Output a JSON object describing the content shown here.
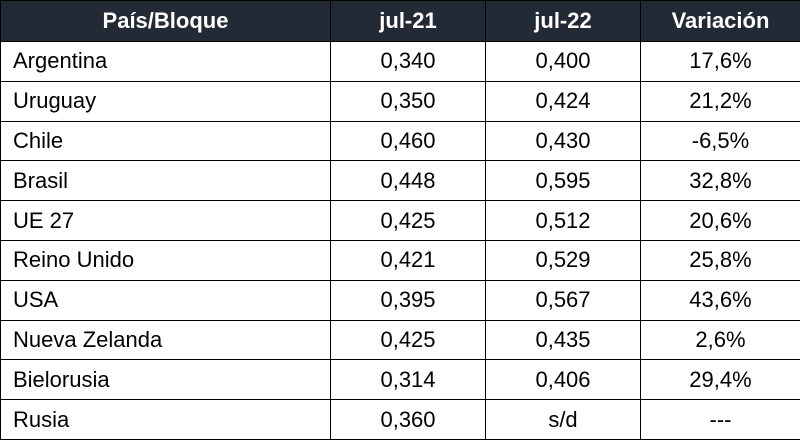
{
  "table": {
    "header": [
      "País/Bloque",
      "jul-21",
      "jul-22",
      "Variación"
    ],
    "rows": [
      [
        "Argentina",
        "0,340",
        "0,400",
        "17,6%"
      ],
      [
        "Uruguay",
        "0,350",
        "0,424",
        "21,2%"
      ],
      [
        "Chile",
        "0,460",
        "0,430",
        "-6,5%"
      ],
      [
        "Brasil",
        "0,448",
        "0,595",
        "32,8%"
      ],
      [
        "UE 27",
        "0,425",
        "0,512",
        "20,6%"
      ],
      [
        "Reino Unido",
        "0,421",
        "0,529",
        "25,8%"
      ],
      [
        "USA",
        "0,395",
        "0,567",
        "43,6%"
      ],
      [
        "Nueva Zelanda",
        "0,425",
        "0,435",
        "2,6%"
      ],
      [
        "Bielorusia",
        "0,314",
        "0,406",
        "29,4%"
      ],
      [
        "Rusia",
        "0,360",
        "s/d",
        "---"
      ]
    ]
  }
}
